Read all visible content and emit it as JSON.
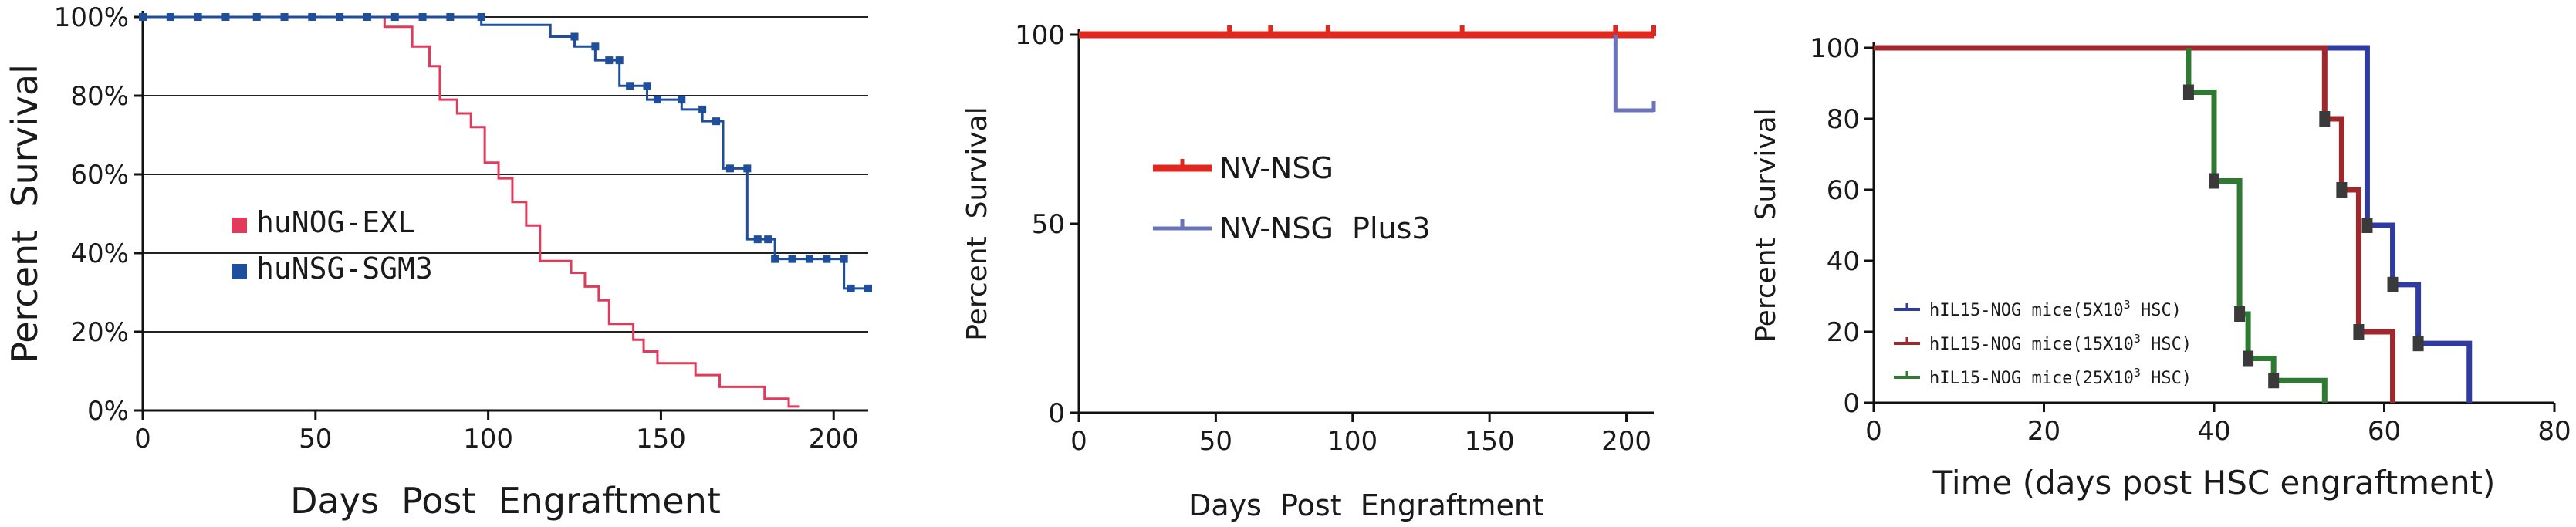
{
  "chart_data": [
    {
      "type": "line",
      "subtype": "kaplan-meier",
      "ylabel": "Percent  Survival",
      "xlabel": "Days  Post  Engraftment",
      "xlim": [
        0,
        210
      ],
      "ylim": [
        0,
        100
      ],
      "x_ticks": [
        0,
        50,
        100,
        150,
        200
      ],
      "y_ticks": [
        0,
        20,
        40,
        60,
        80,
        100
      ],
      "y_tick_labels": [
        "0%",
        "20%",
        "40%",
        "60%",
        "80%",
        "100%"
      ],
      "grid": "horizontal",
      "legend_position": "left",
      "series": [
        {
          "name": "huNOG-EXL",
          "color": "#e23a5b",
          "marker": "none",
          "points": [
            [
              0,
              100
            ],
            [
              70,
              100
            ],
            [
              70,
              97.5
            ],
            [
              78,
              97.5
            ],
            [
              78,
              92.5
            ],
            [
              83,
              92.5
            ],
            [
              83,
              87.5
            ],
            [
              86,
              87.5
            ],
            [
              86,
              79
            ],
            [
              91,
              79
            ],
            [
              91,
              75.5
            ],
            [
              95,
              75.5
            ],
            [
              95,
              72
            ],
            [
              99,
              72
            ],
            [
              99,
              63
            ],
            [
              103,
              63
            ],
            [
              103,
              59
            ],
            [
              107,
              59
            ],
            [
              107,
              53
            ],
            [
              111,
              53
            ],
            [
              111,
              47
            ],
            [
              115,
              47
            ],
            [
              115,
              38
            ],
            [
              124,
              38
            ],
            [
              124,
              35
            ],
            [
              128,
              35
            ],
            [
              128,
              31.5
            ],
            [
              132,
              31.5
            ],
            [
              132,
              28
            ],
            [
              135,
              28
            ],
            [
              135,
              22
            ],
            [
              142,
              22
            ],
            [
              142,
              18
            ],
            [
              145,
              18
            ],
            [
              145,
              15
            ],
            [
              149,
              15
            ],
            [
              149,
              12
            ],
            [
              160,
              12
            ],
            [
              160,
              9
            ],
            [
              167,
              9
            ],
            [
              167,
              6
            ],
            [
              180,
              6
            ],
            [
              180,
              3
            ],
            [
              187,
              3
            ],
            [
              187,
              1
            ],
            [
              190,
              1
            ]
          ],
          "markers": []
        },
        {
          "name": "huNSG-SGM3",
          "color": "#1f4e9c",
          "marker": "square",
          "points": [
            [
              0,
              100
            ],
            [
              98,
              100
            ],
            [
              98,
              98
            ],
            [
              118,
              98
            ],
            [
              118,
              95
            ],
            [
              125,
              95
            ],
            [
              125,
              92.5
            ],
            [
              131,
              92.5
            ],
            [
              131,
              89
            ],
            [
              138,
              89
            ],
            [
              138,
              82.5
            ],
            [
              146,
              82.5
            ],
            [
              146,
              79
            ],
            [
              156,
              79
            ],
            [
              156,
              76.5
            ],
            [
              162,
              76.5
            ],
            [
              162,
              73.5
            ],
            [
              168,
              73.5
            ],
            [
              168,
              61.5
            ],
            [
              175,
              61.5
            ],
            [
              175,
              43.5
            ],
            [
              183,
              43.5
            ],
            [
              183,
              38.5
            ],
            [
              203,
              38.5
            ],
            [
              203,
              31
            ],
            [
              210,
              31
            ]
          ],
          "markers": [
            [
              0,
              100
            ],
            [
              8,
              100
            ],
            [
              16,
              100
            ],
            [
              24,
              100
            ],
            [
              33,
              100
            ],
            [
              41,
              100
            ],
            [
              49,
              100
            ],
            [
              57,
              100
            ],
            [
              65,
              100
            ],
            [
              73,
              100
            ],
            [
              81,
              100
            ],
            [
              89,
              100
            ],
            [
              98,
              100
            ],
            [
              125,
              95
            ],
            [
              131,
              92.5
            ],
            [
              135,
              89
            ],
            [
              138,
              89
            ],
            [
              141,
              82.5
            ],
            [
              146,
              82.5
            ],
            [
              149,
              79
            ],
            [
              156,
              79
            ],
            [
              162,
              76.5
            ],
            [
              166,
              73.5
            ],
            [
              170,
              61.5
            ],
            [
              175,
              61.5
            ],
            [
              178,
              43.5
            ],
            [
              181,
              43.5
            ],
            [
              183,
              38.5
            ],
            [
              188,
              38.5
            ],
            [
              193,
              38.5
            ],
            [
              198,
              38.5
            ],
            [
              203,
              38.5
            ],
            [
              205,
              31
            ],
            [
              210,
              31
            ]
          ]
        }
      ]
    },
    {
      "type": "line",
      "subtype": "kaplan-meier",
      "ylabel": "Percent  Survival",
      "xlabel": "Days  Post  Engraftment",
      "xlim": [
        0,
        210
      ],
      "ylim": [
        0,
        100
      ],
      "x_ticks": [
        0,
        50,
        100,
        150,
        200
      ],
      "y_ticks": [
        0,
        50,
        100
      ],
      "y_tick_labels": [
        "0",
        "50",
        "100"
      ],
      "grid": "none",
      "legend_position": "center-left",
      "series": [
        {
          "name": "NV-NSG",
          "color": "#e0281f",
          "marker": "tick",
          "points": [
            [
              0,
              100
            ],
            [
              210,
              100
            ]
          ],
          "censor_ticks": [
            [
              55,
              100
            ],
            [
              70,
              100
            ],
            [
              91,
              100
            ],
            [
              140,
              100
            ],
            [
              196,
              100
            ],
            [
              210,
              100
            ]
          ]
        },
        {
          "name": "NV-NSG  Plus3",
          "color": "#6a74bd",
          "marker": "tick",
          "points": [
            [
              196,
              100
            ],
            [
              196,
              80
            ],
            [
              210,
              80
            ]
          ],
          "censor_ticks": [
            [
              210,
              80
            ]
          ]
        }
      ]
    },
    {
      "type": "line",
      "subtype": "kaplan-meier",
      "ylabel": "Percent  Survival",
      "xlabel": "Time (days post HSC engraftment)",
      "xlim": [
        0,
        80
      ],
      "ylim": [
        0,
        100
      ],
      "x_ticks": [
        0,
        20,
        40,
        60,
        80
      ],
      "y_ticks": [
        0,
        20,
        40,
        60,
        80,
        100
      ],
      "y_tick_labels": [
        "0",
        "20",
        "40",
        "60",
        "80",
        "100"
      ],
      "grid": "none",
      "legend_position": "bottom-left",
      "series": [
        {
          "name": "hIL15-NOG mice(5X10",
          "name_sup": "3",
          "name_suffix": " HSC)",
          "color": "#2f3ba1",
          "points": [
            [
              0,
              100
            ],
            [
              58,
              100
            ],
            [
              58,
              50
            ],
            [
              61,
              50
            ],
            [
              61,
              33.3
            ],
            [
              64,
              33.3
            ],
            [
              64,
              16.7
            ],
            [
              70,
              16.7
            ],
            [
              70,
              0
            ]
          ],
          "step_markers": [
            [
              58,
              50
            ],
            [
              61,
              33.3
            ],
            [
              64,
              16.7
            ]
          ]
        },
        {
          "name": "hIL15-NOG mice(15X10",
          "name_sup": "3",
          "name_suffix": " HSC)",
          "color": "#a0282d",
          "points": [
            [
              0,
              100
            ],
            [
              53,
              100
            ],
            [
              53,
              80
            ],
            [
              55,
              80
            ],
            [
              55,
              60
            ],
            [
              57,
              60
            ],
            [
              57,
              20
            ],
            [
              61,
              20
            ],
            [
              61,
              0
            ]
          ],
          "step_markers": [
            [
              53,
              80
            ],
            [
              55,
              60
            ],
            [
              57,
              20
            ]
          ]
        },
        {
          "name": "hIL15-NOG mice(25X10",
          "name_sup": "3",
          "name_suffix": " HSC)",
          "color": "#2f7a33",
          "points": [
            [
              37,
              100
            ],
            [
              37,
              87.5
            ],
            [
              40,
              87.5
            ],
            [
              40,
              62.5
            ],
            [
              43,
              62.5
            ],
            [
              43,
              25
            ],
            [
              44,
              25
            ],
            [
              44,
              12.5
            ],
            [
              47,
              12.5
            ],
            [
              47,
              6.25
            ],
            [
              53,
              6.25
            ],
            [
              53,
              0
            ]
          ],
          "step_markers": [
            [
              37,
              87.5
            ],
            [
              40,
              62.5
            ],
            [
              43,
              25
            ],
            [
              44,
              12.5
            ],
            [
              47,
              6.25
            ]
          ]
        }
      ]
    }
  ]
}
